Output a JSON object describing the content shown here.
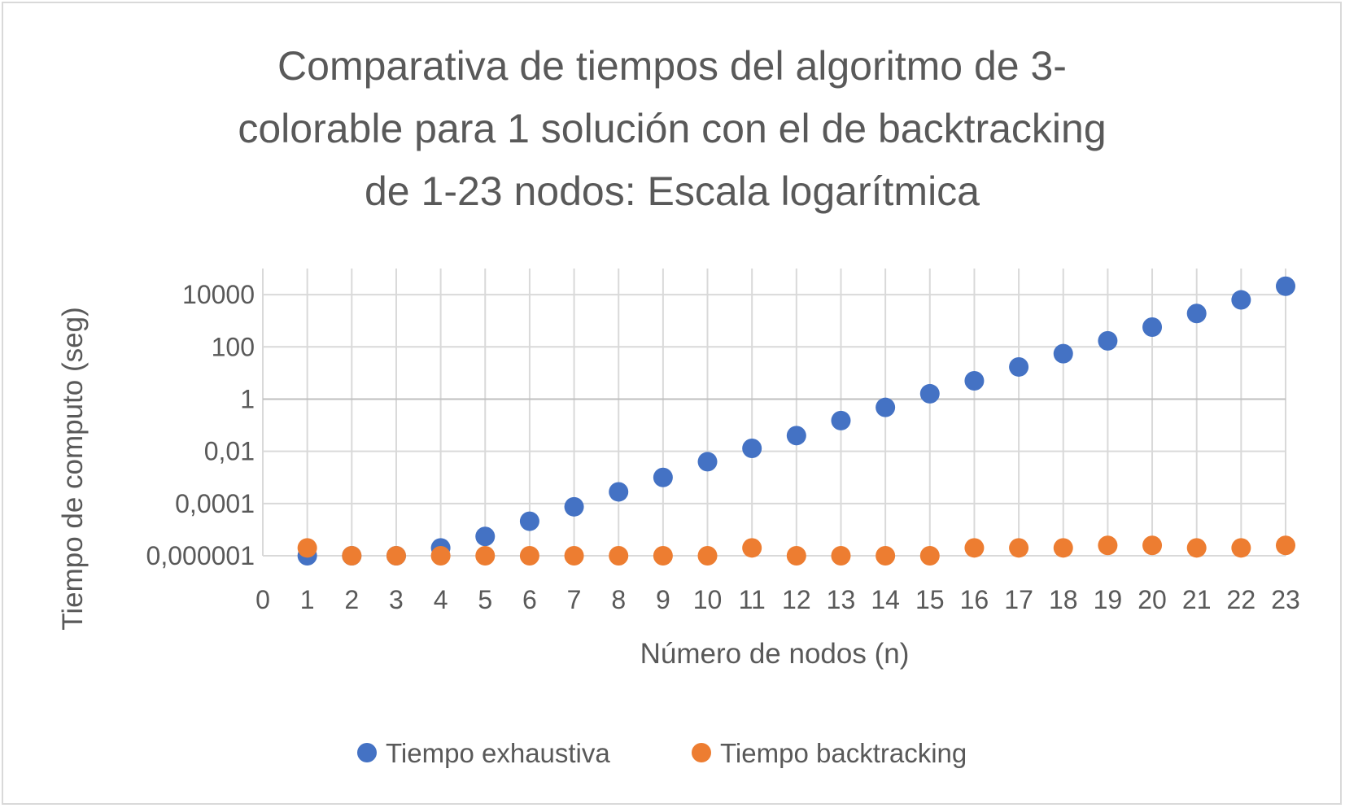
{
  "chart_data": {
    "type": "scatter",
    "title_lines": [
      "Comparativa de tiempos del algoritmo de 3-",
      "colorable para 1 solución con el de backtracking",
      "de 1-23 nodos: Escala logarítmica"
    ],
    "xlabel": "Número de nodos (n)",
    "ylabel": "Tiempo de computo (seg)",
    "x_ticks": [
      "0",
      "1",
      "2",
      "3",
      "4",
      "5",
      "6",
      "7",
      "8",
      "9",
      "10",
      "11",
      "12",
      "13",
      "14",
      "15",
      "16",
      "17",
      "18",
      "19",
      "20",
      "21",
      "22",
      "23"
    ],
    "y_ticks": [
      {
        "value": 1e-06,
        "label": "0,000001"
      },
      {
        "value": 0.0001,
        "label": "0,0001"
      },
      {
        "value": 0.01,
        "label": "0,01"
      },
      {
        "value": 1,
        "label": "1"
      },
      {
        "value": 100,
        "label": "100"
      },
      {
        "value": 10000,
        "label": "10000"
      }
    ],
    "xlim": [
      0,
      23
    ],
    "ylim": [
      1e-06,
      100000
    ],
    "y_scale": "log",
    "grid": true,
    "legend_position": "bottom",
    "series": [
      {
        "name": "Tiempo exhaustiva",
        "color": "#4472c4",
        "x": [
          1,
          2,
          3,
          4,
          5,
          6,
          7,
          8,
          9,
          10,
          11,
          12,
          13,
          14,
          15,
          16,
          17,
          18,
          19,
          20,
          21,
          22,
          23
        ],
        "y": [
          1e-06,
          1e-06,
          1e-06,
          2e-06,
          5.5e-06,
          2.1e-05,
          7.5e-05,
          0.00028,
          0.001,
          0.004,
          0.013,
          0.04,
          0.15,
          0.48,
          1.6,
          5.0,
          17,
          55,
          170,
          570,
          1900,
          6300,
          21000
        ]
      },
      {
        "name": "Tiempo backtracking",
        "color": "#ed7d31",
        "x": [
          1,
          2,
          3,
          4,
          5,
          6,
          7,
          8,
          9,
          10,
          11,
          12,
          13,
          14,
          15,
          16,
          17,
          18,
          19,
          20,
          21,
          22,
          23
        ],
        "y": [
          2e-06,
          1e-06,
          1e-06,
          1e-06,
          1e-06,
          1e-06,
          1e-06,
          1e-06,
          1e-06,
          1e-06,
          2e-06,
          1e-06,
          1e-06,
          1e-06,
          1e-06,
          2e-06,
          2e-06,
          2e-06,
          2.5e-06,
          2.5e-06,
          2e-06,
          2e-06,
          2.5e-06
        ]
      }
    ]
  }
}
